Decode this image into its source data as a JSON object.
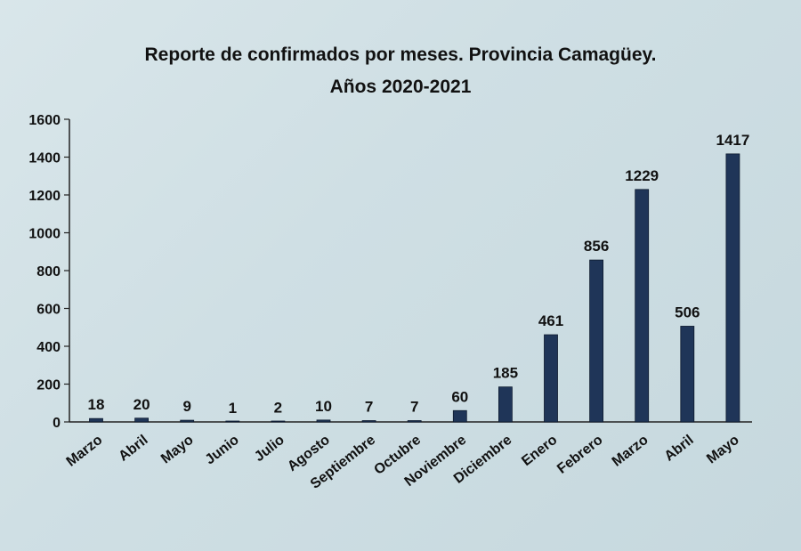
{
  "chart_data": {
    "type": "bar",
    "title_line1": "Reporte de confirmados por meses. Provincia Camagüey.",
    "title_line2": "Años 2020-2021",
    "xlabel": "",
    "ylabel": "",
    "ylim": [
      0,
      1600
    ],
    "yticks": [
      0,
      200,
      400,
      600,
      800,
      1000,
      1200,
      1400,
      1600
    ],
    "categories": [
      "Marzo",
      "Abril",
      "Mayo",
      "Junio",
      "Julio",
      "Agosto",
      "Septiembre",
      "Octubre",
      "Noviembre",
      "Diciembre",
      "Enero",
      "Febrero",
      "Marzo",
      "Abril",
      "Mayo"
    ],
    "values": [
      18,
      20,
      9,
      1,
      2,
      10,
      7,
      7,
      60,
      185,
      461,
      856,
      1229,
      506,
      1417
    ],
    "grid": false,
    "legend": "none",
    "bar_color": "#1f3558"
  }
}
